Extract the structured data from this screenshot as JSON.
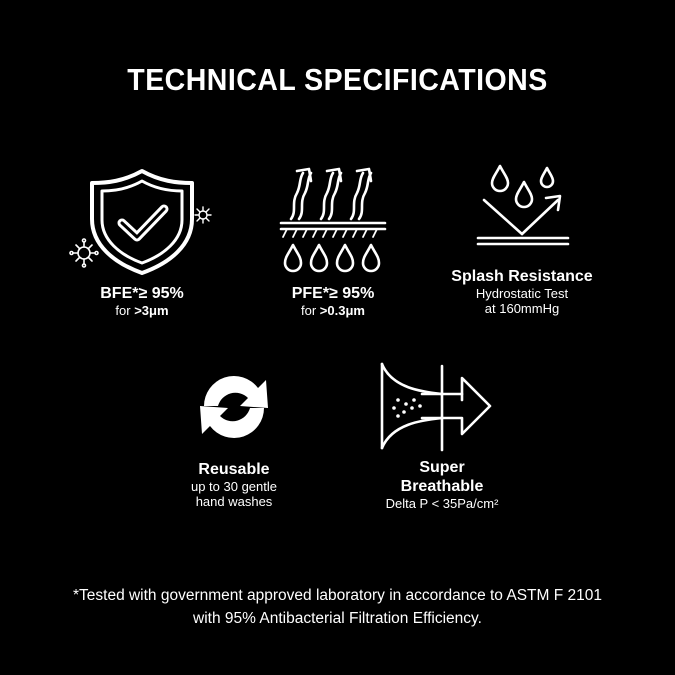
{
  "title": "TECHNICAL SPECIFICATIONS",
  "specs": {
    "bfe": {
      "label": "BFE*≥ 95%",
      "sub_prefix": "for ",
      "sub_value": ">3μm",
      "icon": "shield-check-icon"
    },
    "pfe": {
      "label": "PFE*≥ 95%",
      "sub_prefix": "for ",
      "sub_value": ">0.3μm",
      "icon": "filtration-arrows-icon"
    },
    "splash": {
      "label": "Splash Resistance",
      "sub_line1": "Hydrostatic Test",
      "sub_line2": "at 160mmHg",
      "icon": "water-drops-deflect-icon"
    },
    "reusable": {
      "label": "Reusable",
      "sub_line1": "up to 30 gentle",
      "sub_line2": "hand washes",
      "icon": "recycle-arrows-icon"
    },
    "breathable": {
      "label_line1": "Super",
      "label_line2": "Breathable",
      "sub": "Delta P < 35Pa/cm²",
      "icon": "airflow-arrow-icon"
    }
  },
  "footnote": {
    "line1": "*Tested with government approved laboratory in accordance to ASTM F 2101",
    "line2": "with 95% Antibacterial Filtration Efficiency."
  }
}
